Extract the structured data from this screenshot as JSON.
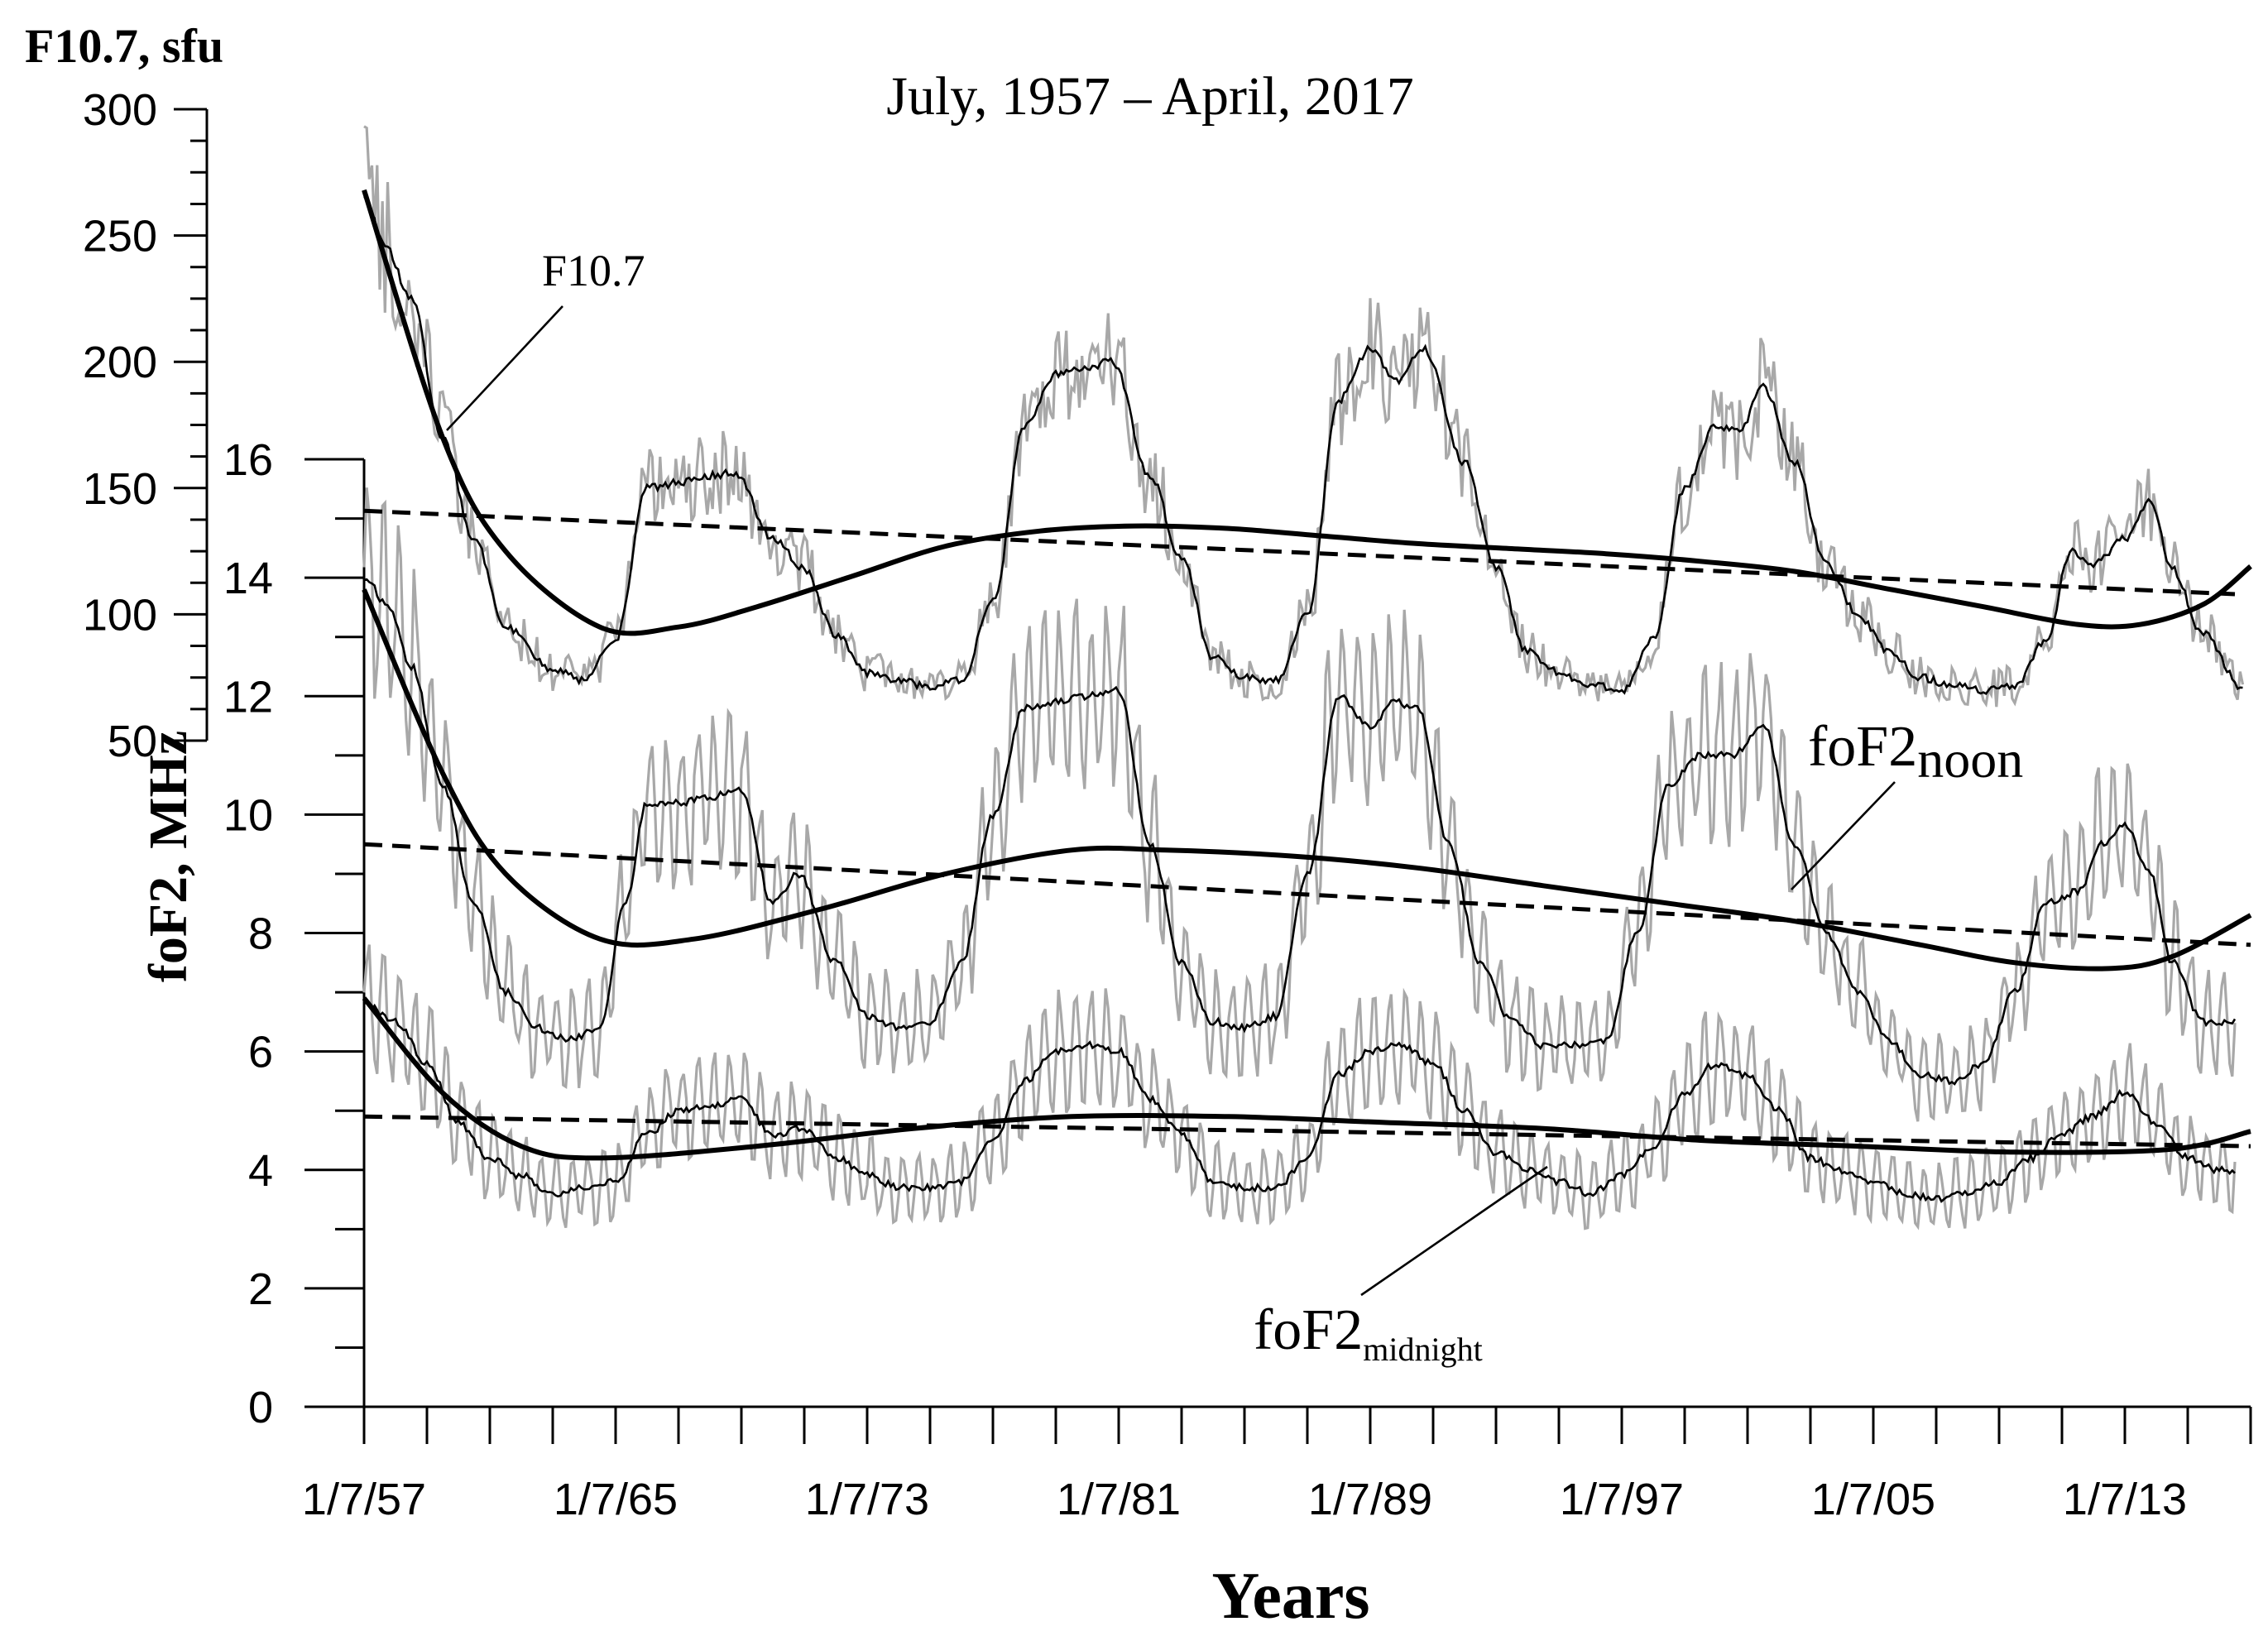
{
  "chart_data": {
    "type": "line",
    "title": "July, 1957 – April, 2017",
    "xlabel": "Years",
    "x_tick_labels": [
      "1/7/57",
      "1/7/65",
      "1/7/73",
      "1/7/81",
      "1/7/89",
      "1/7/97",
      "1/7/05",
      "1/7/13"
    ],
    "x_tick_years": [
      1957.5,
      1965.5,
      1973.5,
      1981.5,
      1989.5,
      1997.5,
      2005.5,
      2013.5
    ],
    "xlim": [
      1957.5,
      2017.5
    ],
    "left_axis_f107": {
      "label": "F10.7, sfu",
      "ylim": [
        50,
        300
      ],
      "ticks": [
        "50",
        "100",
        "150",
        "200",
        "250",
        "300"
      ],
      "tick_values": [
        50,
        100,
        150,
        200,
        250,
        300
      ]
    },
    "left_axis_fof2": {
      "label": "foF2, MHz",
      "ylim": [
        0,
        16
      ],
      "ticks": [
        "0",
        "2",
        "4",
        "6",
        "8",
        "10",
        "12",
        "14",
        "16"
      ],
      "tick_values": [
        0,
        2,
        4,
        6,
        8,
        10,
        12,
        14,
        16
      ]
    },
    "annotations": {
      "f107": "F10.7",
      "noon_main": "foF2",
      "noon_sub": "noon",
      "midnight_main": "foF2",
      "midnight_sub": "midnight"
    },
    "series": [
      {
        "name": "F10.7 (sfu)",
        "axis": "f107",
        "smoothed_anchors_x": [
          1957.5,
          1958.2,
          1959.0,
          1960.0,
          1961.0,
          1962.0,
          1963.5,
          1964.5,
          1965.5,
          1966.5,
          1967.5,
          1968.5,
          1969.3,
          1970.5,
          1971.5,
          1972.5,
          1973.5,
          1974.5,
          1975.5,
          1976.5,
          1977.5,
          1978.5,
          1979.5,
          1980.5,
          1981.3,
          1982.5,
          1983.5,
          1984.5,
          1985.5,
          1986.5,
          1987.5,
          1988.5,
          1989.5,
          1990.3,
          1991.2,
          1992.5,
          1993.5,
          1994.5,
          1995.5,
          1996.5,
          1997.5,
          1998.5,
          1999.5,
          2000.5,
          2001.2,
          2002.0,
          2003.0,
          2004.0,
          2005.0,
          2006.0,
          2007.0,
          2008.0,
          2009.0,
          2010.0,
          2011.0,
          2011.8,
          2012.5,
          2013.5,
          2014.3,
          2015.0,
          2016.0,
          2017.3
        ],
        "smoothed_anchors_y": [
          265,
          245,
          225,
          170,
          130,
          95,
          78,
          74,
          90,
          150,
          152,
          155,
          156,
          130,
          118,
          92,
          77,
          74,
          71,
          74,
          105,
          175,
          195,
          198,
          200,
          155,
          122,
          83,
          75,
          74,
          100,
          185,
          205,
          192,
          205,
          160,
          118,
          85,
          77,
          72,
          70,
          90,
          150,
          175,
          172,
          190,
          160,
          120,
          100,
          85,
          75,
          72,
          70,
          72,
          90,
          125,
          120,
          130,
          145,
          118,
          92,
          70
        ]
      },
      {
        "name": "foF2 noon (MHz)",
        "axis": "fof2",
        "smoothed_anchors_x": [
          1957.5,
          1958.3,
          1959.0,
          1960.0,
          1961.0,
          1962.0,
          1963.0,
          1964.0,
          1965.0,
          1965.8,
          1966.5,
          1967.5,
          1968.5,
          1969.5,
          1970.5,
          1971.3,
          1972.5,
          1973.5,
          1974.5,
          1975.5,
          1976.5,
          1977.5,
          1978.5,
          1979.5,
          1980.5,
          1981.5,
          1982.5,
          1983.5,
          1984.5,
          1985.5,
          1986.5,
          1987.5,
          1988.5,
          1989.5,
          1990.3,
          1991.0,
          1992.0,
          1993.0,
          1994.0,
          1995.0,
          1996.0,
          1997.0,
          1998.0,
          1999.0,
          2000.0,
          2001.0,
          2002.0,
          2003.0,
          2004.0,
          2005.0,
          2006.0,
          2007.0,
          2008.0,
          2009.0,
          2010.0,
          2011.0,
          2012.0,
          2012.8,
          2013.5,
          2014.3,
          2015.0,
          2016.0,
          2017.0
        ],
        "smoothed_anchors_y": [
          14.0,
          13.5,
          12.5,
          10.5,
          8.5,
          7.0,
          6.4,
          6.2,
          6.4,
          8.5,
          10.2,
          10.2,
          10.3,
          10.4,
          8.5,
          9.0,
          7.5,
          6.6,
          6.4,
          6.5,
          7.5,
          10.0,
          11.8,
          11.9,
          12.0,
          12.1,
          9.5,
          7.5,
          6.5,
          6.4,
          6.6,
          9.0,
          12.0,
          11.5,
          11.9,
          11.8,
          9.5,
          7.5,
          6.5,
          6.1,
          6.1,
          6.2,
          8.0,
          10.5,
          11.0,
          11.0,
          11.5,
          9.5,
          8.0,
          7.0,
          6.2,
          5.6,
          5.5,
          5.8,
          7.0,
          8.5,
          8.7,
          9.5,
          9.8,
          9.0,
          7.5,
          6.5,
          6.5
        ]
      },
      {
        "name": "foF2 midnight (MHz)",
        "axis": "fof2",
        "smoothed_anchors_x": [
          1957.5,
          1958.5,
          1959.5,
          1960.5,
          1961.5,
          1962.5,
          1963.5,
          1964.5,
          1965.5,
          1966.5,
          1967.5,
          1968.5,
          1969.5,
          1970.5,
          1971.5,
          1972.5,
          1973.5,
          1974.5,
          1975.5,
          1976.5,
          1977.5,
          1978.5,
          1979.5,
          1980.5,
          1981.5,
          1982.5,
          1983.5,
          1984.5,
          1985.5,
          1986.5,
          1987.5,
          1988.5,
          1989.5,
          1990.5,
          1991.5,
          1992.5,
          1993.5,
          1994.5,
          1995.5,
          1996.5,
          1997.5,
          1998.5,
          1999.5,
          2000.5,
          2001.5,
          2002.5,
          2003.5,
          2004.5,
          2005.5,
          2006.5,
          2007.5,
          2008.5,
          2009.5,
          2010.5,
          2011.5,
          2012.5,
          2013.5,
          2014.5,
          2015.5,
          2016.5,
          2017.0
        ],
        "smoothed_anchors_y": [
          6.8,
          6.5,
          5.8,
          4.8,
          4.2,
          3.9,
          3.6,
          3.7,
          3.8,
          4.6,
          5.0,
          5.1,
          5.2,
          4.6,
          4.7,
          4.2,
          3.9,
          3.7,
          3.7,
          3.8,
          4.5,
          5.5,
          6.0,
          6.1,
          6.0,
          5.2,
          4.6,
          3.8,
          3.7,
          3.7,
          4.2,
          5.6,
          6.0,
          6.1,
          5.8,
          5.0,
          4.3,
          4.0,
          3.8,
          3.6,
          3.9,
          4.4,
          5.3,
          5.8,
          5.6,
          5.0,
          4.2,
          4.0,
          3.8,
          3.6,
          3.5,
          3.6,
          3.8,
          4.2,
          4.6,
          4.9,
          5.3,
          4.8,
          4.2,
          4.0,
          4.0
        ]
      },
      {
        "name": "F10.7 polynomial fit",
        "axis": "f107",
        "anchors_x": [
          1957.5,
          1960.0,
          1962.0,
          1965.0,
          1967.5,
          1970.0,
          1973.0,
          1976.0,
          1979.0,
          1982.0,
          1985.0,
          1988.0,
          1991.0,
          1994.0,
          1997.0,
          2000.0,
          2003.0,
          2006.0,
          2009.0,
          2012.0,
          2014.0,
          2016.0,
          2017.5
        ],
        "anchors_y": [
          268,
          170,
          125,
          95,
          95,
          103,
          115,
          127,
          133,
          135,
          134,
          131,
          128,
          126,
          124,
          121,
          117,
          110,
          103,
          96,
          96,
          104,
          119
        ]
      },
      {
        "name": "F10.7 linear trend",
        "axis": "f107",
        "anchors_x": [
          1957.5,
          2017.0
        ],
        "anchors_y": [
          141,
          108
        ]
      },
      {
        "name": "foF2 noon polynomial fit",
        "axis": "fof2",
        "anchors_x": [
          1957.5,
          1960.0,
          1962.0,
          1965.0,
          1968.0,
          1972.0,
          1976.0,
          1980.0,
          1983.0,
          1987.0,
          1991.0,
          1995.0,
          1999.0,
          2003.0,
          2007.0,
          2010.0,
          2013.0,
          2015.0,
          2017.5
        ],
        "anchors_y": [
          13.8,
          10.7,
          9.0,
          7.9,
          7.9,
          8.4,
          9.0,
          9.4,
          9.4,
          9.3,
          9.1,
          8.8,
          8.5,
          8.2,
          7.8,
          7.5,
          7.4,
          7.6,
          8.3
        ]
      },
      {
        "name": "foF2 noon linear trend",
        "axis": "fof2",
        "anchors_x": [
          1957.5,
          2017.5
        ],
        "anchors_y": [
          9.5,
          7.8
        ]
      },
      {
        "name": "foF2 midnight polynomial fit",
        "axis": "fof2",
        "anchors_x": [
          1957.5,
          1960.0,
          1962.5,
          1965.0,
          1970.0,
          1975.0,
          1980.0,
          1985.0,
          1990.0,
          1995.0,
          2000.0,
          2005.0,
          2010.0,
          2015.0,
          2017.5
        ],
        "anchors_y": [
          6.9,
          5.3,
          4.4,
          4.2,
          4.4,
          4.7,
          4.9,
          4.9,
          4.8,
          4.7,
          4.5,
          4.4,
          4.3,
          4.35,
          4.65
        ]
      },
      {
        "name": "foF2 midnight linear trend",
        "axis": "fof2",
        "anchors_x": [
          1957.5,
          2017.5
        ],
        "anchors_y": [
          4.9,
          4.4
        ]
      }
    ]
  }
}
